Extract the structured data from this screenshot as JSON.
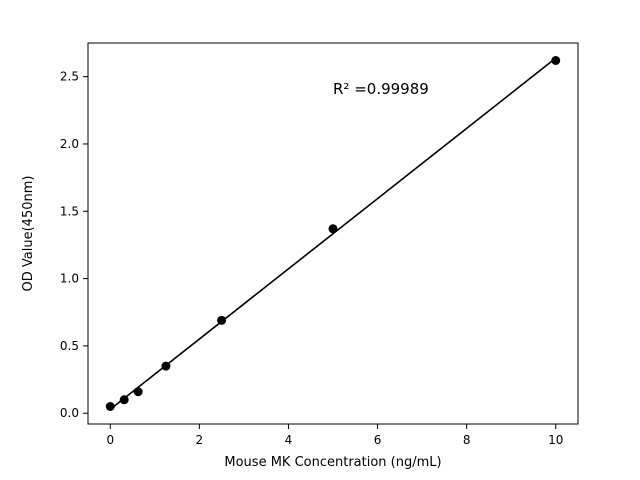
{
  "figure": {
    "background": "#ffffff"
  },
  "chart_data": {
    "type": "scatter",
    "title": "",
    "xlabel": "Mouse MK Concentration (ng/mL)",
    "ylabel": "OD Value(450nm)",
    "x": [
      0,
      0.3125,
      0.625,
      1.25,
      2.5,
      5,
      10
    ],
    "y": [
      0.05,
      0.1,
      0.16,
      0.35,
      0.69,
      1.37,
      2.62
    ],
    "xlim": [
      -0.5,
      10.5
    ],
    "ylim": [
      -0.08,
      2.75
    ],
    "xticks": [
      0,
      2,
      4,
      6,
      8,
      10
    ],
    "xtick_labels": [
      "0",
      "2",
      "4",
      "6",
      "8",
      "10"
    ],
    "yticks": [
      0,
      0.5,
      1.0,
      1.5,
      2.0,
      2.5
    ],
    "ytick_labels": [
      "0.0",
      "0.5",
      "1.0",
      "1.5",
      "2.0",
      "2.5"
    ],
    "annotation": {
      "text": "R² =0.99989",
      "x": 5.0,
      "y": 2.37
    },
    "marker_color": "#000000",
    "line_color": "#000000",
    "fit_line": true,
    "grid": false,
    "legend": false
  }
}
